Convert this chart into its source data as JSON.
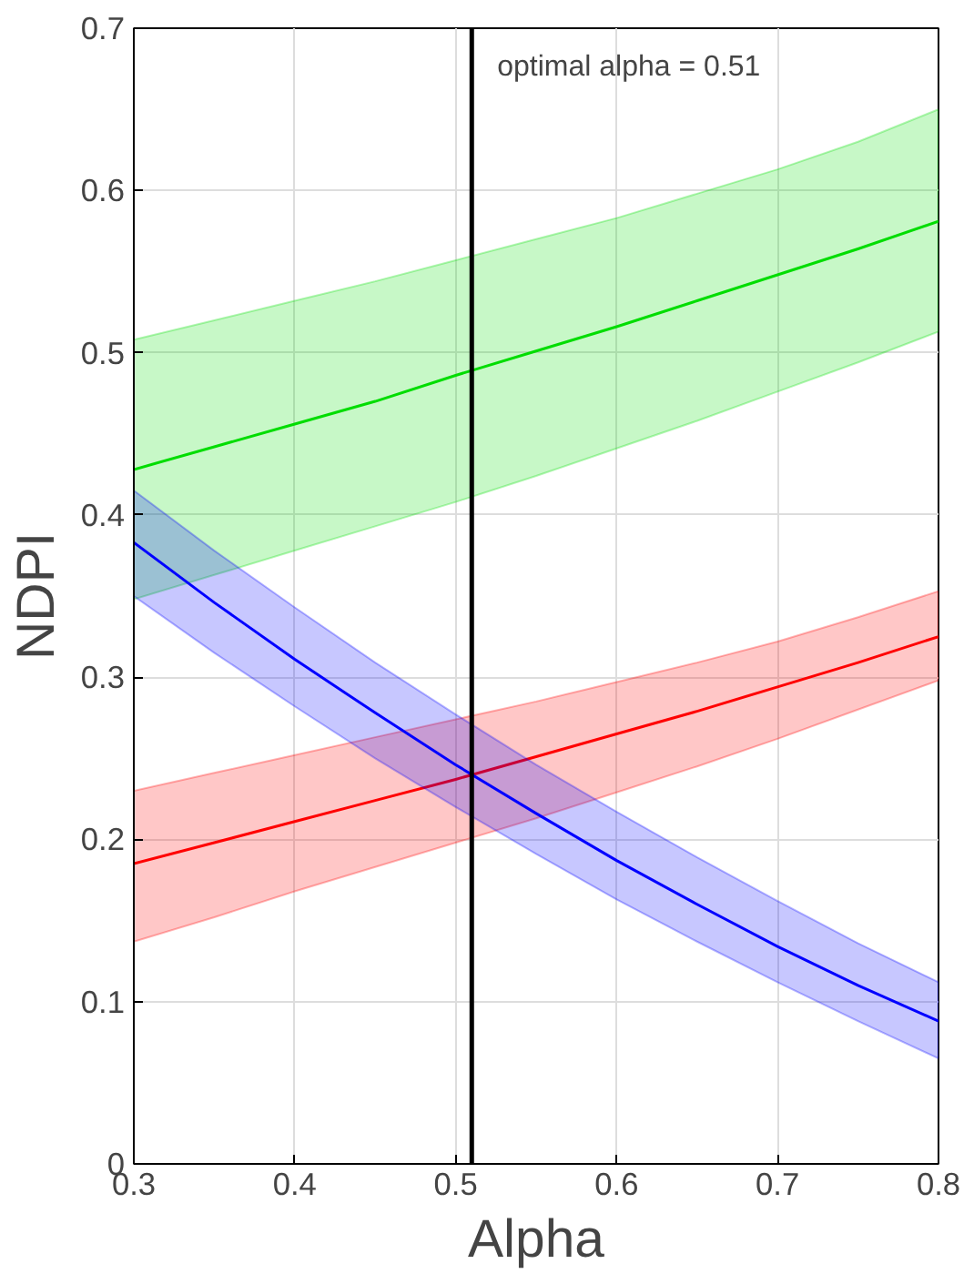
{
  "chart_data": {
    "type": "line",
    "xlabel": "Alpha",
    "ylabel": "NDPI",
    "x": [
      0.3,
      0.35,
      0.4,
      0.45,
      0.5,
      0.55,
      0.6,
      0.65,
      0.7,
      0.75,
      0.8
    ],
    "series": [
      {
        "color": "#00dd00",
        "values": [
          0.428,
          0.442,
          0.456,
          0.47,
          0.486,
          0.501,
          0.516,
          0.532,
          0.548,
          0.564,
          0.581
        ],
        "lower": [
          0.348,
          0.363,
          0.378,
          0.393,
          0.408,
          0.424,
          0.441,
          0.458,
          0.476,
          0.494,
          0.513
        ],
        "upper": [
          0.508,
          0.52,
          0.532,
          0.544,
          0.557,
          0.57,
          0.583,
          0.598,
          0.613,
          0.63,
          0.65
        ]
      },
      {
        "color": "#ff0000",
        "values": [
          0.185,
          0.198,
          0.211,
          0.224,
          0.237,
          0.251,
          0.265,
          0.279,
          0.294,
          0.309,
          0.325
        ],
        "lower": [
          0.137,
          0.152,
          0.168,
          0.183,
          0.198,
          0.213,
          0.229,
          0.245,
          0.262,
          0.28,
          0.298
        ],
        "upper": [
          0.23,
          0.241,
          0.252,
          0.263,
          0.274,
          0.285,
          0.297,
          0.309,
          0.322,
          0.337,
          0.353
        ]
      },
      {
        "color": "#0000ff",
        "values": [
          0.383,
          0.346,
          0.311,
          0.278,
          0.246,
          0.216,
          0.187,
          0.16,
          0.134,
          0.11,
          0.088
        ],
        "lower": [
          0.35,
          0.315,
          0.282,
          0.25,
          0.22,
          0.191,
          0.163,
          0.137,
          0.112,
          0.088,
          0.065
        ],
        "upper": [
          0.415,
          0.378,
          0.343,
          0.309,
          0.277,
          0.246,
          0.217,
          0.189,
          0.162,
          0.136,
          0.112
        ]
      }
    ],
    "xlim": [
      0.3,
      0.8
    ],
    "xticks": [
      0.3,
      0.4,
      0.5,
      0.6,
      0.7,
      0.8
    ],
    "ylim": [
      0,
      0.7
    ],
    "yticks": [
      0,
      0.1,
      0.2,
      0.3,
      0.4,
      0.5,
      0.6,
      0.7
    ],
    "ref_lines": [
      {
        "axis": "x",
        "value": 0.51,
        "label": "optimal alpha = 0.51",
        "color": "#000000"
      }
    ],
    "grid": true,
    "line_style": "solid",
    "marker": "none"
  }
}
